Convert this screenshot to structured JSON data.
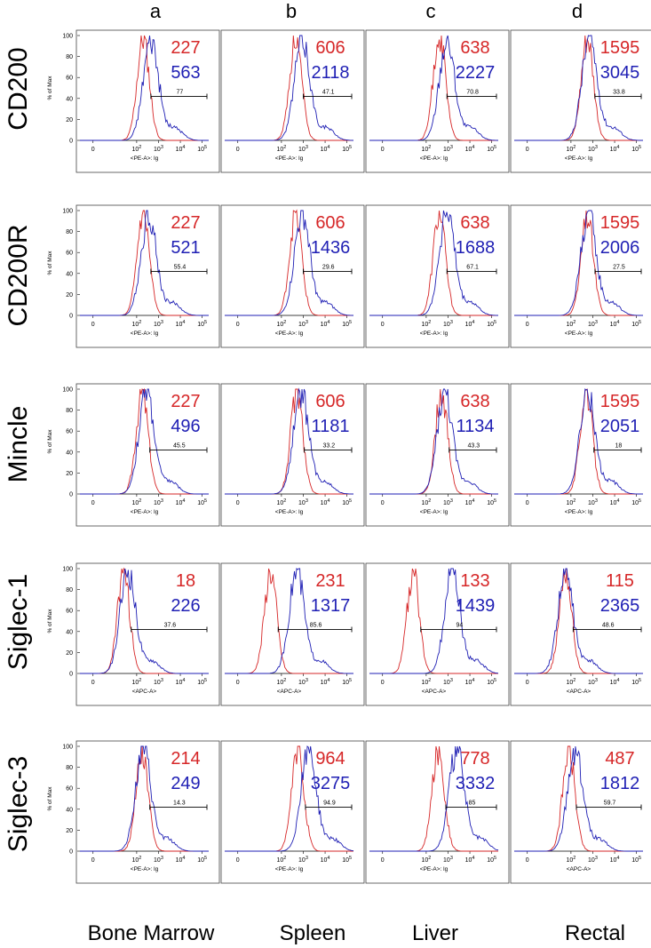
{
  "colors": {
    "isotype": "#d62728",
    "stain": "#1f1fb4"
  },
  "column_letters": [
    "a",
    "b",
    "c",
    "d"
  ],
  "row_markers": [
    "CD200",
    "CD200R",
    "Mincle",
    "Siglec-1",
    "Siglec-3"
  ],
  "tissues": [
    "Bone Marrow",
    "Spleen",
    "Liver",
    "Rectal"
  ],
  "y_ticks": [
    "0",
    "20",
    "40",
    "60",
    "80",
    "100"
  ],
  "x_ticks": [
    "0",
    "10",
    "10",
    "10",
    "10"
  ],
  "x_tick_exponents": [
    "",
    "2",
    "3",
    "4",
    "5"
  ],
  "y_axis_label": "% of Max",
  "x_axis_labels": {
    "pe": "<PE-A>: lg",
    "apc": "<APC-A>"
  },
  "chart_data": {
    "type": "area",
    "description_axis": {
      "x_scale": "log (biexponential)",
      "y_range": [
        0,
        100
      ]
    },
    "panels": [
      {
        "row": "CD200",
        "col": "a",
        "xlabel": "<PE-A>: lg",
        "mfi_iso": "227",
        "mfi_stain": "563",
        "gate_pct": "77",
        "iso_peak": 2.3,
        "stain_peak": 2.65
      },
      {
        "row": "CD200",
        "col": "b",
        "xlabel": "<PE-A>: lg",
        "mfi_iso": "606",
        "mfi_stain": "2118",
        "gate_pct": "47.1",
        "iso_peak": 2.65,
        "stain_peak": 2.95
      },
      {
        "row": "CD200",
        "col": "c",
        "xlabel": "<PE-A>: lg",
        "mfi_iso": "638",
        "mfi_stain": "2227",
        "gate_pct": "70.8",
        "iso_peak": 2.6,
        "stain_peak": 2.95
      },
      {
        "row": "CD200",
        "col": "d",
        "xlabel": "<PE-A>: lg",
        "mfi_iso": "1595",
        "mfi_stain": "3045",
        "gate_pct": "33.8",
        "iso_peak": 2.75,
        "stain_peak": 2.85
      },
      {
        "row": "CD200R",
        "col": "a",
        "xlabel": "<PE-A>: lg",
        "mfi_iso": "227",
        "mfi_stain": "521",
        "gate_pct": "55.4",
        "iso_peak": 2.3,
        "stain_peak": 2.55
      },
      {
        "row": "CD200R",
        "col": "b",
        "xlabel": "<PE-A>: lg",
        "mfi_iso": "606",
        "mfi_stain": "1436",
        "gate_pct": "29.6",
        "iso_peak": 2.65,
        "stain_peak": 2.95
      },
      {
        "row": "CD200R",
        "col": "c",
        "xlabel": "<PE-A>: lg",
        "mfi_iso": "638",
        "mfi_stain": "1688",
        "gate_pct": "67.1",
        "iso_peak": 2.6,
        "stain_peak": 2.95
      },
      {
        "row": "CD200R",
        "col": "d",
        "xlabel": "<PE-A>: lg",
        "mfi_iso": "1595",
        "mfi_stain": "2006",
        "gate_pct": "27.5",
        "iso_peak": 2.75,
        "stain_peak": 2.8
      },
      {
        "row": "Mincle",
        "col": "a",
        "xlabel": "<PE-A>: lg",
        "mfi_iso": "227",
        "mfi_stain": "496",
        "gate_pct": "45.5",
        "iso_peak": 2.25,
        "stain_peak": 2.45
      },
      {
        "row": "Mincle",
        "col": "b",
        "xlabel": "<PE-A>: lg",
        "mfi_iso": "606",
        "mfi_stain": "1181",
        "gate_pct": "33.2",
        "iso_peak": 2.7,
        "stain_peak": 2.9
      },
      {
        "row": "Mincle",
        "col": "c",
        "xlabel": "<PE-A>: lg",
        "mfi_iso": "638",
        "mfi_stain": "1134",
        "gate_pct": "43.3",
        "iso_peak": 2.7,
        "stain_peak": 2.85
      },
      {
        "row": "Mincle",
        "col": "d",
        "xlabel": "<PE-A>: lg",
        "mfi_iso": "1595",
        "mfi_stain": "2051",
        "gate_pct": "18",
        "iso_peak": 2.7,
        "stain_peak": 2.75
      },
      {
        "row": "Siglec-1",
        "col": "a",
        "xlabel": "<APC-A>",
        "mfi_iso": "18",
        "mfi_stain": "226",
        "gate_pct": "37.6",
        "iso_peak": 1.4,
        "stain_peak": 1.6
      },
      {
        "row": "Siglec-1",
        "col": "b",
        "xlabel": "<APC-A>",
        "mfi_iso": "231",
        "mfi_stain": "1317",
        "gate_pct": "85.6",
        "iso_peak": 1.5,
        "stain_peak": 2.7
      },
      {
        "row": "Siglec-1",
        "col": "c",
        "xlabel": "<APC-A>",
        "mfi_iso": "133",
        "mfi_stain": "1439",
        "gate_pct": "94",
        "iso_peak": 1.4,
        "stain_peak": 3.2
      },
      {
        "row": "Siglec-1",
        "col": "d",
        "xlabel": "<APC-A>",
        "mfi_iso": "115",
        "mfi_stain": "2365",
        "gate_pct": "48.6",
        "iso_peak": 1.75,
        "stain_peak": 1.75
      },
      {
        "row": "Siglec-3",
        "col": "a",
        "xlabel": "<PE-A>: lg",
        "mfi_iso": "214",
        "mfi_stain": "249",
        "gate_pct": "14.3",
        "iso_peak": 2.25,
        "stain_peak": 2.3
      },
      {
        "row": "Siglec-3",
        "col": "b",
        "xlabel": "<PE-A>: lg",
        "mfi_iso": "964",
        "mfi_stain": "3275",
        "gate_pct": "94.9",
        "iso_peak": 2.75,
        "stain_peak": 3.25
      },
      {
        "row": "Siglec-3",
        "col": "c",
        "xlabel": "<PE-A>: lg",
        "mfi_iso": "778",
        "mfi_stain": "3332",
        "gate_pct": "85",
        "iso_peak": 2.55,
        "stain_peak": 3.4
      },
      {
        "row": "Siglec-3",
        "col": "d",
        "xlabel": "<APC-A>",
        "mfi_iso": "487",
        "mfi_stain": "1812",
        "gate_pct": "59.7",
        "iso_peak": 1.9,
        "stain_peak": 2.2
      }
    ]
  }
}
